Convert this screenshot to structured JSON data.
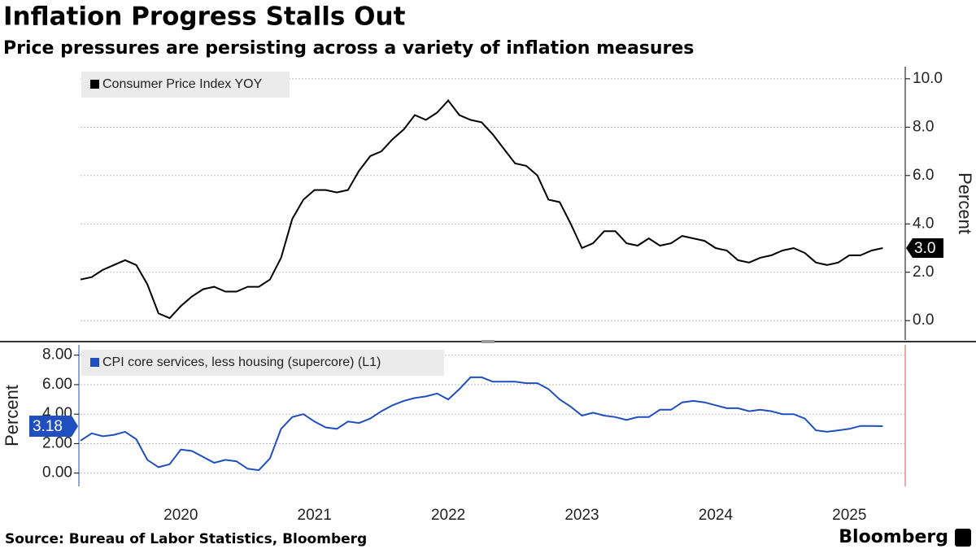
{
  "title": "Inflation Progress Stalls Out",
  "subtitle": "Price pressures are persisting across a variety of inflation measures",
  "source": "Source: Bureau of Labor Statistics, Bloomberg",
  "brand": "Bloomberg",
  "chart_data": [
    {
      "type": "line",
      "series": [
        {
          "name": "Consumer Price Index YOY",
          "color": "#000000",
          "values": [
            1.7,
            1.8,
            2.1,
            2.3,
            2.5,
            2.3,
            1.5,
            0.3,
            0.1,
            0.6,
            1.0,
            1.3,
            1.4,
            1.2,
            1.2,
            1.4,
            1.4,
            1.7,
            2.6,
            4.2,
            5.0,
            5.4,
            5.4,
            5.3,
            5.4,
            6.2,
            6.8,
            7.0,
            7.5,
            7.9,
            8.5,
            8.3,
            8.6,
            9.1,
            8.5,
            8.3,
            8.2,
            7.7,
            7.1,
            6.5,
            6.4,
            6.0,
            5.0,
            4.9,
            4.0,
            3.0,
            3.2,
            3.7,
            3.7,
            3.2,
            3.1,
            3.4,
            3.1,
            3.2,
            3.5,
            3.4,
            3.3,
            3.0,
            2.9,
            2.5,
            2.4,
            2.6,
            2.7,
            2.9,
            3.0,
            2.8,
            2.4,
            2.3,
            2.4,
            2.7,
            2.7,
            2.9,
            3.0
          ],
          "value_labels": [
            null,
            null,
            null,
            null,
            null,
            null,
            null,
            null,
            null,
            null,
            null,
            null,
            null,
            null,
            null,
            null,
            null,
            null,
            null,
            null,
            null,
            null,
            null,
            null,
            null,
            null,
            null,
            null,
            null,
            null,
            null,
            null,
            null,
            null,
            null,
            null,
            null,
            null,
            null,
            null,
            null,
            null,
            null,
            null,
            null,
            null,
            null,
            null,
            null,
            null,
            null,
            null,
            null,
            null,
            null,
            null,
            null,
            null,
            null,
            null,
            null,
            null,
            null,
            null,
            null,
            null,
            null,
            null,
            null,
            null,
            null,
            null,
            "3.0"
          ]
        }
      ],
      "ylabel": "Percent",
      "ylim": [
        -0.8,
        10.5
      ],
      "yticks": [
        {
          "value": 0,
          "label": "0.0"
        },
        {
          "value": 2,
          "label": "2.0"
        },
        {
          "value": 4,
          "label": "4.0"
        },
        {
          "value": 6,
          "label": "6.0"
        },
        {
          "value": 8,
          "label": "8.0"
        },
        {
          "value": 10,
          "label": "10.0"
        }
      ],
      "grid": true
    },
    {
      "type": "line",
      "categories": [
        null,
        null,
        null,
        null,
        null,
        null,
        null,
        null,
        null,
        "2020",
        null,
        null,
        null,
        null,
        null,
        null,
        null,
        null,
        null,
        null,
        null,
        "2021",
        null,
        null,
        null,
        null,
        null,
        null,
        null,
        null,
        null,
        null,
        null,
        "2022",
        null,
        null,
        null,
        null,
        null,
        null,
        null,
        null,
        null,
        null,
        null,
        "2023",
        null,
        null,
        null,
        null,
        null,
        null,
        null,
        null,
        null,
        null,
        null,
        "2024",
        null,
        null,
        null,
        null,
        null,
        null,
        null,
        null,
        null,
        null,
        null,
        "2025",
        null,
        null,
        null
      ],
      "series": [
        {
          "name": "CPI core services, less housing (supercore) (L1)",
          "color": "#1f4fbf",
          "values": [
            2.2,
            2.7,
            2.5,
            2.6,
            2.8,
            2.3,
            0.9,
            0.4,
            0.6,
            1.6,
            1.5,
            1.1,
            0.7,
            0.9,
            0.8,
            0.3,
            0.2,
            1.0,
            3.0,
            3.8,
            4.0,
            3.5,
            3.1,
            3.0,
            3.5,
            3.4,
            3.7,
            4.2,
            4.6,
            4.9,
            5.1,
            5.2,
            5.4,
            5.0,
            5.7,
            6.5,
            6.5,
            6.2,
            6.2,
            6.2,
            6.1,
            6.1,
            5.7,
            5.0,
            4.5,
            3.9,
            4.1,
            3.9,
            3.8,
            3.6,
            3.8,
            3.8,
            4.3,
            4.3,
            4.8,
            4.9,
            4.8,
            4.6,
            4.4,
            4.4,
            4.2,
            4.3,
            4.2,
            4.0,
            4.0,
            3.7,
            2.9,
            2.8,
            2.9,
            3.0,
            3.2,
            3.2,
            3.18
          ]
        }
      ],
      "ylabel": "Percent",
      "ylim": [
        -0.9,
        8.7
      ],
      "yticks": [
        {
          "value": 0,
          "label": "0.00"
        },
        {
          "value": 2,
          "label": "2.00"
        },
        {
          "value": 4,
          "label": "4.00"
        },
        {
          "value": 6,
          "label": "6.00"
        },
        {
          "value": 8,
          "label": "8.00"
        }
      ],
      "grid": true
    }
  ]
}
